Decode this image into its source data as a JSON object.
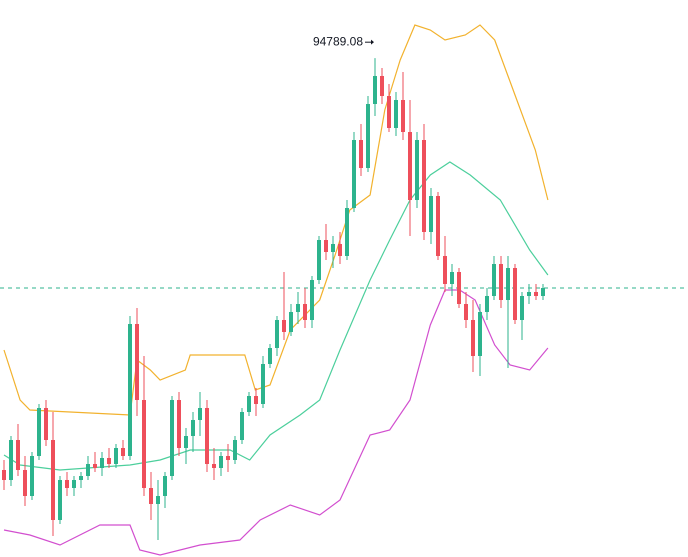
{
  "chart_data": {
    "type": "candlestick",
    "annotation": 94789.08,
    "ylim": [
      92295,
      95080
    ],
    "up_color": "#2db38d",
    "down_color": "#ee4f5b",
    "open": [
      92730,
      92680,
      92880,
      92730,
      92600,
      92800,
      93040,
      92880,
      92480,
      92680,
      92640,
      92680,
      92700,
      92760,
      92740,
      92790,
      92760,
      92840,
      92800,
      93460,
      93080,
      92640,
      92560,
      92600,
      92700,
      93080,
      92840,
      92900,
      92980,
      93040,
      92760,
      92740,
      92800,
      92780,
      92880,
      93020,
      93100,
      93060,
      93260,
      93340,
      93480,
      93420,
      93520,
      93560,
      93480,
      93680,
      93880,
      93820,
      93860,
      93800,
      94040,
      94380,
      94240,
      94560,
      94700,
      94600,
      94440,
      94580,
      94420,
      94080,
      94380,
      93920,
      94100,
      93800,
      93660,
      93720,
      93560,
      93480,
      93300,
      93520,
      93600,
      93760,
      93580,
      93740,
      93480,
      93600,
      93620,
      93600
    ],
    "high": [
      92780,
      92900,
      92960,
      92800,
      92820,
      93060,
      93080,
      93020,
      92700,
      92720,
      92700,
      92720,
      92800,
      92820,
      92820,
      92840,
      92860,
      92880,
      93500,
      93540,
      93300,
      92720,
      92680,
      92720,
      93100,
      93120,
      92940,
      93020,
      93120,
      93080,
      92840,
      92820,
      92860,
      92900,
      93040,
      93120,
      93140,
      93300,
      93360,
      93500,
      93720,
      93560,
      93620,
      93640,
      93700,
      93900,
      93960,
      93900,
      93920,
      94080,
      94420,
      94460,
      94600,
      94789.08,
      94740,
      94660,
      94620,
      94720,
      94580,
      94420,
      94460,
      94140,
      94120,
      93900,
      93760,
      93740,
      93620,
      93580,
      93560,
      93640,
      93800,
      93800,
      93800,
      93760,
      93620,
      93660,
      93660,
      93660
    ],
    "low": [
      92630,
      92650,
      92700,
      92550,
      92580,
      92780,
      92850,
      92400,
      92460,
      92600,
      92600,
      92640,
      92680,
      92720,
      92700,
      92740,
      92740,
      92780,
      92780,
      93000,
      92600,
      92480,
      92380,
      92540,
      92680,
      92800,
      92760,
      92820,
      92900,
      92720,
      92680,
      92700,
      92720,
      92760,
      92860,
      93000,
      93000,
      93040,
      93240,
      93300,
      93380,
      93400,
      93460,
      93440,
      93440,
      93660,
      93780,
      93740,
      93760,
      93780,
      94020,
      94200,
      94220,
      94500,
      94560,
      94420,
      94400,
      94380,
      93900,
      94040,
      93880,
      93860,
      93780,
      93620,
      93600,
      93540,
      93440,
      93220,
      93200,
      93480,
      93580,
      93540,
      93240,
      93460,
      93380,
      93560,
      93580,
      93580
    ],
    "close": [
      92680,
      92880,
      92730,
      92600,
      92800,
      93040,
      92880,
      92480,
      92680,
      92640,
      92680,
      92700,
      92760,
      92740,
      92790,
      92760,
      92840,
      92800,
      93460,
      93080,
      92640,
      92560,
      92600,
      92700,
      93080,
      92840,
      92900,
      92980,
      93040,
      92760,
      92740,
      92800,
      92780,
      92880,
      93020,
      93100,
      93060,
      93260,
      93340,
      93480,
      93420,
      93520,
      93560,
      93480,
      93680,
      93880,
      93820,
      93860,
      93800,
      94040,
      94380,
      94240,
      94560,
      94700,
      94600,
      94440,
      94580,
      94420,
      94080,
      94380,
      93920,
      94100,
      93800,
      93660,
      93720,
      93560,
      93480,
      93300,
      93520,
      93600,
      93760,
      93580,
      93740,
      93480,
      93600,
      93620,
      93600,
      93640
    ],
    "bands": [
      {
        "color": "#f2b22e",
        "x": [
          0,
          2.3,
          3.7,
          18,
          19,
          20.9,
          22.3,
          25.9,
          26.6,
          34.4,
          35.9,
          38,
          40.9,
          45.1,
          47.3,
          49.4,
          52.3,
          54.4,
          56.6,
          58.7,
          60.9,
          63,
          65.9,
          68,
          70.1,
          73,
          75.9,
          77.7
        ],
        "values": [
          93330,
          93080,
          93030,
          93005,
          93280,
          93230,
          93180,
          93230,
          93305,
          93305,
          93130,
          93155,
          93430,
          93580,
          93805,
          94030,
          94105,
          94530,
          94780,
          94955,
          94930,
          94880,
          94905,
          94955,
          94880,
          94605,
          94330,
          94080
        ]
      },
      {
        "color": "#4ccf9c",
        "x": [
          0,
          2.3,
          8,
          18,
          22.3,
          26.6,
          32.3,
          35.1,
          38,
          42.3,
          45.1,
          48,
          52.3,
          55.1,
          58,
          60.9,
          63.7,
          66.6,
          70.9,
          75.1,
          77.7
        ],
        "values": [
          92805,
          92755,
          92730,
          92755,
          92780,
          92830,
          92830,
          92780,
          92905,
          93005,
          93080,
          93330,
          93680,
          93880,
          94080,
          94205,
          94270,
          94205,
          94080,
          93830,
          93705
        ]
      },
      {
        "color": "#d24fcf",
        "x": [
          0,
          3.7,
          8,
          13.7,
          18,
          19.4,
          22.3,
          28,
          33.7,
          36.6,
          40.9,
          45.1,
          48,
          52.3,
          55.1,
          58,
          60.9,
          63,
          65.1,
          67.3,
          70.1,
          72.3,
          75.1,
          77.7
        ],
        "values": [
          92430,
          92405,
          92355,
          92455,
          92455,
          92330,
          92305,
          92355,
          92380,
          92480,
          92555,
          92505,
          92580,
          92905,
          92930,
          93080,
          93455,
          93630,
          93630,
          93580,
          93355,
          93255,
          93230,
          93340
        ]
      }
    ]
  }
}
